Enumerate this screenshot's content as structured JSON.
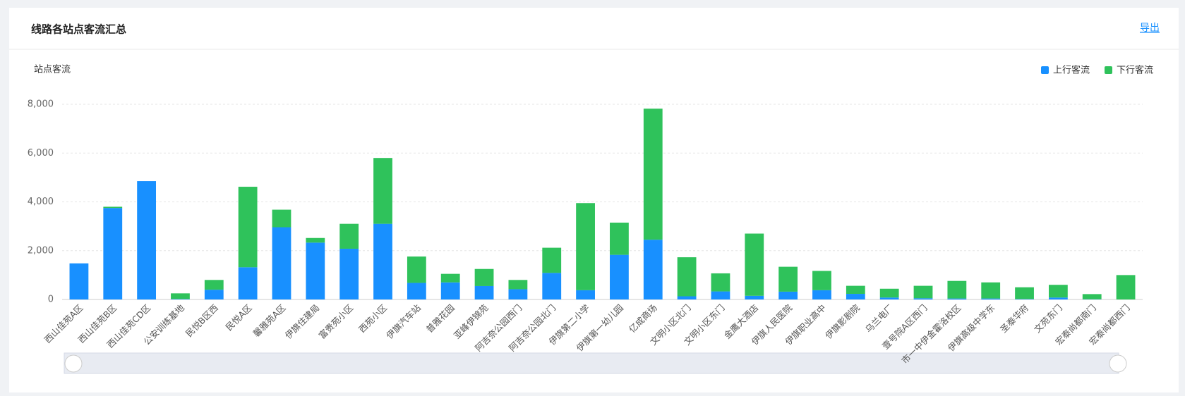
{
  "header": {
    "title": "线路各站点客流汇总",
    "export": "导出"
  },
  "chart_data": {
    "type": "bar",
    "stacked": true,
    "ylabel": "站点客流",
    "legend": "top-right",
    "grid": true,
    "categories": [
      "西山佳苑A区",
      "西山佳苑B区",
      "西山佳苑CD区",
      "公安训练基地",
      "民悦B区西",
      "民悦A区",
      "馨雅苑A区",
      "伊旗住建局",
      "富贵苑小区",
      "西苑小区",
      "伊旗汽车站",
      "普雅花园",
      "亚峰伊锦苑",
      "阿吉奈公园西门",
      "阿吉奈公园北门",
      "伊旗第二小学",
      "伊旗第一幼儿园",
      "亿成商场",
      "文明小区北门",
      "文明小区东门",
      "金鹰大酒店",
      "伊旗人民医院",
      "伊旗职业高中",
      "伊旗影剧院",
      "乌兰电厂",
      "壹号院A区西门",
      "市一中伊金霍洛校区",
      "伊旗高级中学东",
      "圣泰华府",
      "文苑东门",
      "宏泰尚都南门",
      "宏泰尚都西门"
    ],
    "series": [
      {
        "name": "上行客流",
        "color": "#1890ff",
        "values": [
          1480,
          3750,
          4850,
          20,
          400,
          1320,
          2960,
          2330,
          2080,
          3100,
          680,
          700,
          550,
          420,
          1090,
          380,
          1830,
          2450,
          130,
          330,
          150,
          320,
          380,
          230,
          80,
          50,
          40,
          40,
          20,
          80,
          10,
          0
        ]
      },
      {
        "name": "下行客流",
        "color": "#2fc25b",
        "values": [
          0,
          50,
          0,
          230,
          400,
          3300,
          720,
          190,
          1020,
          2700,
          1080,
          350,
          700,
          380,
          1030,
          3570,
          1320,
          5370,
          1600,
          740,
          2550,
          1020,
          790,
          330,
          360,
          510,
          720,
          660,
          480,
          520,
          210,
          1000
        ]
      }
    ],
    "ylim": [
      0,
      8000
    ],
    "yticks": [
      0,
      {
        "value": 2000,
        "label": "2,000"
      },
      {
        "value": 4000,
        "label": "4,000"
      },
      {
        "value": 6000,
        "label": "6,000"
      },
      {
        "value": 8000,
        "label": "8,000"
      }
    ]
  }
}
